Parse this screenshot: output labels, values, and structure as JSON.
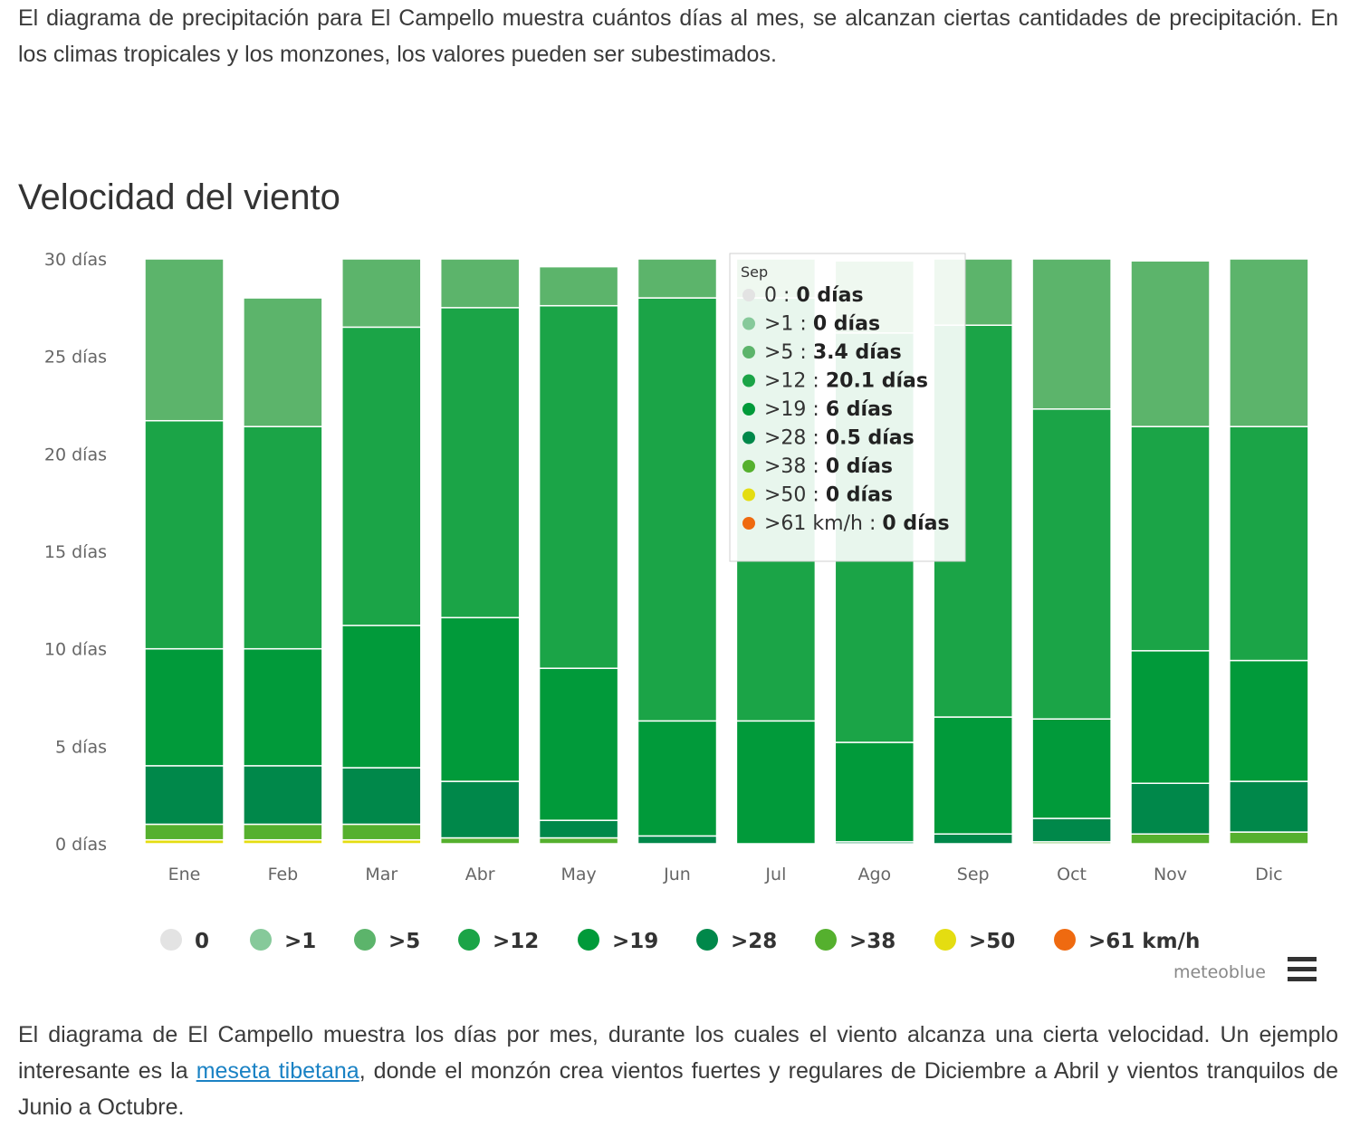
{
  "intro_text": "El diagrama de precipitación para El Campello muestra cuántos días al mes, se alcanzan ciertas cantidades de precipitación. En los climas tropicales y los monzones, los valores pueden ser subestimados.",
  "heading": "Velocidad del viento",
  "outro": {
    "before": "El diagrama de El Campello muestra los días por mes, durante los cuales el viento alcanza una cierta velocidad. Un ejemplo interesante es la ",
    "link": "meseta tibetana",
    "after": ", donde el monzón crea vientos fuertes y regulares de Diciembre a Abril y vientos tranquilos de Junio a Octubre."
  },
  "credit": "meteoblue",
  "menu_icon": "hamburger-menu-icon",
  "colors": {
    "0": "#e3e3e3",
    ">1": "#86c99a",
    ">5": "#5cb46b",
    ">12": "#1ba447",
    ">19": "#019a3a",
    ">28": "#00884a",
    ">38": "#55b02e",
    ">50": "#e4dd11",
    ">61 km/h": "#ef6a10"
  },
  "chart_data": {
    "type": "bar",
    "stacked": true,
    "categories": [
      "Ene",
      "Feb",
      "Mar",
      "Abr",
      "May",
      "Jun",
      "Jul",
      "Ago",
      "Sep",
      "Oct",
      "Nov",
      "Dic"
    ],
    "ylim": [
      0,
      30
    ],
    "y_ticks": [
      "0 días",
      "5 días",
      "10 días",
      "15 días",
      "20 días",
      "25 días",
      "30 días"
    ],
    "series": [
      {
        "name": ">61 km/h",
        "values": [
          0,
          0,
          0,
          0,
          0,
          0,
          0,
          0,
          0,
          0,
          0,
          0
        ]
      },
      {
        "name": ">50",
        "values": [
          0.2,
          0.2,
          0.2,
          0,
          0,
          0,
          0,
          0,
          0,
          0,
          0,
          0
        ]
      },
      {
        "name": ">38",
        "values": [
          0.8,
          0.8,
          0.8,
          0.3,
          0.3,
          0,
          0,
          0,
          0,
          0.1,
          0.5,
          0.6
        ]
      },
      {
        "name": ">28",
        "values": [
          3,
          3,
          2.9,
          2.9,
          0.9,
          0.4,
          0,
          0.1,
          0.5,
          1.2,
          2.6,
          2.6
        ]
      },
      {
        "name": ">19",
        "values": [
          6,
          6,
          7.3,
          8.4,
          7.8,
          5.9,
          6.3,
          5.1,
          6,
          5.1,
          6.8,
          6.2
        ]
      },
      {
        "name": ">12",
        "values": [
          11.7,
          11.4,
          15.3,
          15.9,
          18.6,
          21.7,
          21.7,
          21,
          20.1,
          15.9,
          11.5,
          12
        ]
      },
      {
        "name": ">5",
        "values": [
          8.3,
          6.6,
          3.5,
          2.5,
          2,
          2,
          2,
          3.7,
          3.4,
          7.7,
          8.5,
          8.6
        ]
      },
      {
        "name": ">1",
        "values": [
          0,
          0,
          0,
          0,
          0,
          0,
          0,
          0,
          0,
          0,
          0,
          0
        ]
      },
      {
        "name": "0",
        "values": [
          0,
          0,
          0,
          0,
          0,
          0,
          0,
          0,
          0,
          0,
          0,
          0
        ]
      }
    ],
    "legend": [
      "0",
      ">1",
      ">5",
      ">12",
      ">19",
      ">28",
      ">38",
      ">50",
      ">61 km/h"
    ],
    "tooltip": {
      "title": "Sep",
      "rows": [
        {
          "name": "0",
          "value": "0 días"
        },
        {
          "name": ">1",
          "value": "0 días"
        },
        {
          "name": ">5",
          "value": "3.4 días"
        },
        {
          "name": ">12",
          "value": "20.1 días"
        },
        {
          "name": ">19",
          "value": "6 días"
        },
        {
          "name": ">28",
          "value": "0.5 días"
        },
        {
          "name": ">38",
          "value": "0 días"
        },
        {
          "name": ">50",
          "value": "0 días"
        },
        {
          "name": ">61 km/h",
          "value": "0 días"
        }
      ]
    }
  }
}
